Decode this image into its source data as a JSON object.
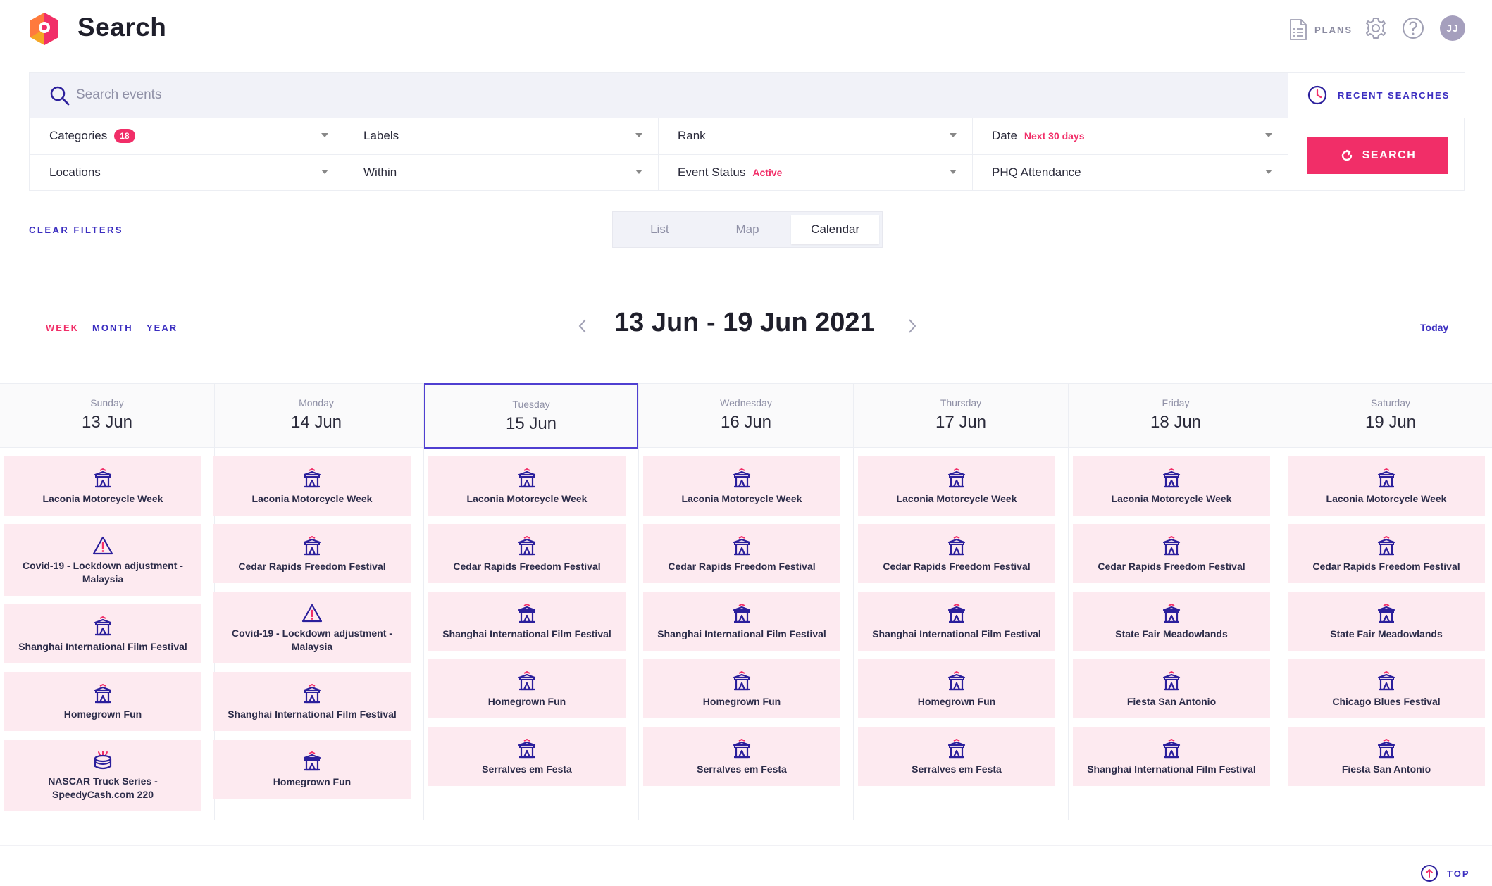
{
  "header": {
    "title": "Search",
    "plans_label": "PLANS",
    "avatar_initials": "JJ",
    "brand_color": "#f12e68",
    "accent_color": "#3b2ec0"
  },
  "search": {
    "placeholder": "Search events",
    "recent_label": "RECENT SEARCHES",
    "button_label": "SEARCH"
  },
  "filters": {
    "categories": {
      "label": "Categories",
      "badge": "18"
    },
    "labels": {
      "label": "Labels"
    },
    "rank": {
      "label": "Rank"
    },
    "date": {
      "label": "Date",
      "tag": "Next 30 days"
    },
    "locations": {
      "label": "Locations"
    },
    "within": {
      "label": "Within"
    },
    "event_status": {
      "label": "Event Status",
      "tag": "Active"
    },
    "attendance": {
      "label": "PHQ Attendance"
    }
  },
  "clear_filters_label": "CLEAR FILTERS",
  "view_tabs": [
    "List",
    "Map",
    "Calendar"
  ],
  "range": {
    "modes": [
      "WEEK",
      "MONTH",
      "YEAR"
    ],
    "title": "13 Jun - 19 Jun 2021",
    "today_label": "Today"
  },
  "days": [
    {
      "name": "Sunday",
      "date": "13 Jun",
      "events": [
        {
          "title": "Laconia Motorcycle Week",
          "icon": "festival-icon"
        },
        {
          "title": "Covid-19 - Lockdown adjustment - Malaysia",
          "icon": "warning-icon"
        },
        {
          "title": "Shanghai International Film Festival",
          "icon": "festival-icon"
        },
        {
          "title": "Homegrown Fun",
          "icon": "festival-icon"
        },
        {
          "title": "NASCAR Truck Series - SpeedyCash.com 220",
          "icon": "sports-icon"
        }
      ]
    },
    {
      "name": "Monday",
      "date": "14 Jun",
      "events": [
        {
          "title": "Laconia Motorcycle Week",
          "icon": "festival-icon"
        },
        {
          "title": "Cedar Rapids Freedom Festival",
          "icon": "festival-icon"
        },
        {
          "title": "Covid-19 - Lockdown adjustment - Malaysia",
          "icon": "warning-icon"
        },
        {
          "title": "Shanghai International Film Festival",
          "icon": "festival-icon"
        },
        {
          "title": "Homegrown Fun",
          "icon": "festival-icon"
        }
      ]
    },
    {
      "name": "Tuesday",
      "date": "15 Jun",
      "events": [
        {
          "title": "Laconia Motorcycle Week",
          "icon": "festival-icon"
        },
        {
          "title": "Cedar Rapids Freedom Festival",
          "icon": "festival-icon"
        },
        {
          "title": "Shanghai International Film Festival",
          "icon": "festival-icon"
        },
        {
          "title": "Homegrown Fun",
          "icon": "festival-icon"
        },
        {
          "title": "Serralves em Festa",
          "icon": "festival-icon"
        }
      ]
    },
    {
      "name": "Wednesday",
      "date": "16 Jun",
      "events": [
        {
          "title": "Laconia Motorcycle Week",
          "icon": "festival-icon"
        },
        {
          "title": "Cedar Rapids Freedom Festival",
          "icon": "festival-icon"
        },
        {
          "title": "Shanghai International Film Festival",
          "icon": "festival-icon"
        },
        {
          "title": "Homegrown Fun",
          "icon": "festival-icon"
        },
        {
          "title": "Serralves em Festa",
          "icon": "festival-icon"
        }
      ]
    },
    {
      "name": "Thursday",
      "date": "17 Jun",
      "events": [
        {
          "title": "Laconia Motorcycle Week",
          "icon": "festival-icon"
        },
        {
          "title": "Cedar Rapids Freedom Festival",
          "icon": "festival-icon"
        },
        {
          "title": "Shanghai International Film Festival",
          "icon": "festival-icon"
        },
        {
          "title": "Homegrown Fun",
          "icon": "festival-icon"
        },
        {
          "title": "Serralves em Festa",
          "icon": "festival-icon"
        }
      ]
    },
    {
      "name": "Friday",
      "date": "18 Jun",
      "events": [
        {
          "title": "Laconia Motorcycle Week",
          "icon": "festival-icon"
        },
        {
          "title": "Cedar Rapids Freedom Festival",
          "icon": "festival-icon"
        },
        {
          "title": "State Fair Meadowlands",
          "icon": "festival-icon"
        },
        {
          "title": "Fiesta San Antonio",
          "icon": "festival-icon"
        },
        {
          "title": "Shanghai International Film Festival",
          "icon": "festival-icon"
        }
      ]
    },
    {
      "name": "Saturday",
      "date": "19 Jun",
      "events": [
        {
          "title": "Laconia Motorcycle Week",
          "icon": "festival-icon"
        },
        {
          "title": "Cedar Rapids Freedom Festival",
          "icon": "festival-icon"
        },
        {
          "title": "State Fair Meadowlands",
          "icon": "festival-icon"
        },
        {
          "title": "Chicago Blues Festival",
          "icon": "festival-icon"
        },
        {
          "title": "Fiesta San Antonio",
          "icon": "festival-icon"
        }
      ]
    }
  ],
  "selected_day": "Tuesday",
  "top_label": "TOP"
}
